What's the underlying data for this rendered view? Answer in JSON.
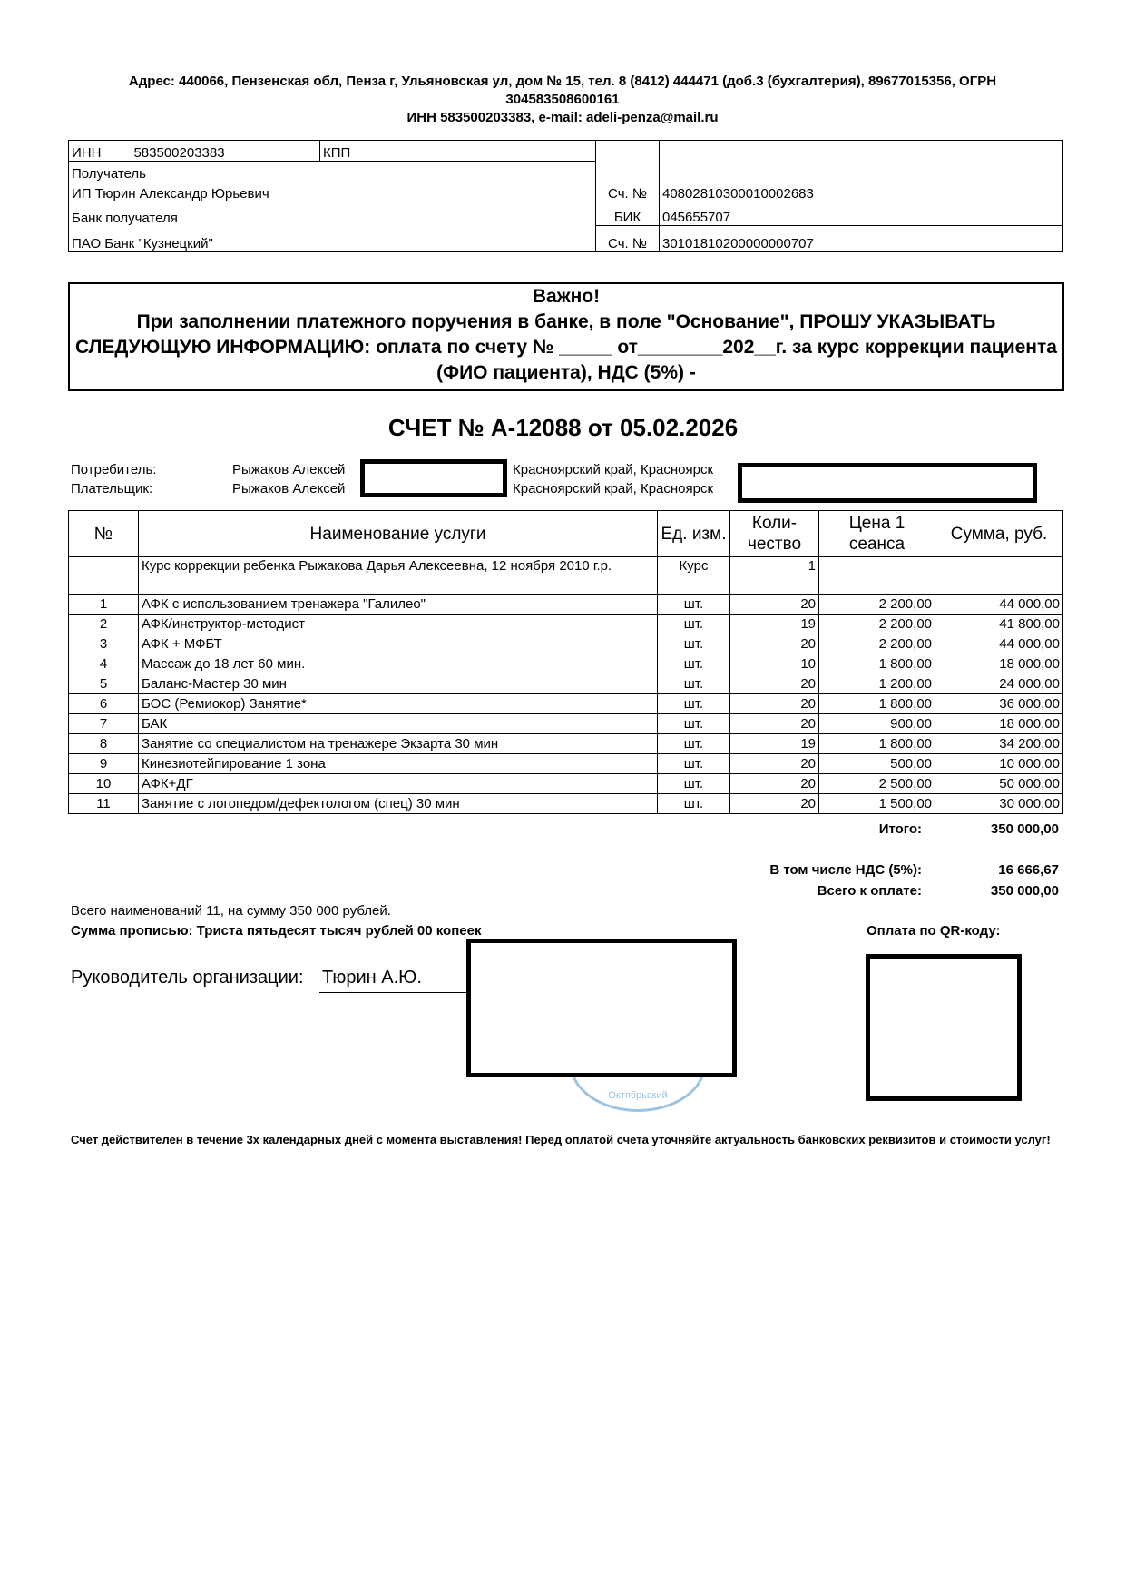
{
  "header": {
    "line1": "Адрес: 440066, Пензенская обл, Пенза г, Ульяновская ул, дом № 15, тел. 8 (8412) 444471 (доб.3 (бухгалтерия),  89677015356, ОГРН",
    "line2": "304583508600161",
    "line3": "ИНН 583500203383, e-mail: adeli-penza@mail.ru"
  },
  "bank": {
    "inn_label": "ИНН",
    "inn": "583500203383",
    "kpp_label": "КПП",
    "recipient_label": "Получатель",
    "recipient": "ИП Тюрин Александр Юрьевич",
    "account_label": "Сч. №",
    "account": "40802810300010002683",
    "bank_label": "Банк получателя",
    "bik_label": "БИК",
    "bik": "045655707",
    "bank_name": "ПАО Банк \"Кузнецкий\"",
    "corr_label": "Сч. №",
    "corr_account": "30101810200000000707"
  },
  "important": {
    "title": "Важно!",
    "text": "При заполнении платежного поручения в банке, в поле \"Основание\", ПРОШУ УКАЗЫВАТЬ СЛЕДУЮЩУЮ ИНФОРМАЦИЮ: оплата по счету № _____ от________202__г. за курс коррекции пациента (ФИО пациента), НДС (5%) -"
  },
  "invoice_title": "СЧЕТ № А-12088 от 05.02.2026",
  "parties": {
    "consumer_label": "Потребитель:",
    "consumer": "Рыжаков Алексей",
    "consumer_region": "Красноярский край, Красноярск",
    "payer_label": "Плательщик:",
    "payer": "Рыжаков Алексей",
    "payer_region": "Красноярский край, Красноярск"
  },
  "table": {
    "headers": [
      "№",
      "Наименование услуги",
      "Ед. изм.",
      "Коли-чество",
      "Цена 1 сеанса",
      "Сумма, руб."
    ],
    "course": {
      "name": "Курс коррекции ребенка Рыжакова Дарья Алексеевна, 12 ноября 2010 г.р.",
      "unit": "Курс",
      "qty": "1"
    },
    "rows": [
      [
        "1",
        "АФК с использованием тренажера \"Галилео\"",
        "шт.",
        "20",
        "2 200,00",
        "44 000,00"
      ],
      [
        "2",
        "АФК/инструктор-методист",
        "шт.",
        "19",
        "2 200,00",
        "41 800,00"
      ],
      [
        "3",
        "АФК + МФБТ",
        "шт.",
        "20",
        "2 200,00",
        "44 000,00"
      ],
      [
        "4",
        "Массаж до 18 лет 60 мин.",
        "шт.",
        "10",
        "1 800,00",
        "18 000,00"
      ],
      [
        "5",
        "Баланс-Мастер 30 мин",
        "шт.",
        "20",
        "1 200,00",
        "24 000,00"
      ],
      [
        "6",
        "БОС (Ремиокор) Занятие*",
        "шт.",
        "20",
        "1 800,00",
        "36 000,00"
      ],
      [
        "7",
        "БАК",
        "шт.",
        "20",
        "900,00",
        "18 000,00"
      ],
      [
        "8",
        "Занятие со специалистом на тренажере Экзарта 30 мин",
        "шт.",
        "19",
        "1 800,00",
        "34 200,00"
      ],
      [
        "9",
        "Кинезиотейпирование 1 зона",
        "шт.",
        "20",
        "500,00",
        "10 000,00"
      ],
      [
        "10",
        "АФК+ДГ",
        "шт.",
        "20",
        "2 500,00",
        "50 000,00"
      ],
      [
        "11",
        "Занятие с логопедом/дефектологом (спец) 30 мин",
        "шт.",
        "20",
        "1 500,00",
        "30 000,00"
      ]
    ]
  },
  "totals": {
    "total_label": "Итого:",
    "total": "350 000,00",
    "vat_label": "В том числе НДС (5%):",
    "vat": "16 666,67",
    "due_label": "Всего к оплате:",
    "due": "350 000,00"
  },
  "summary": "Всего наименований 11, на сумму 350 000 рублей.",
  "in_words": "Сумма прописью: Триста пятьдесят тысяч рублей 00 копеек",
  "qr_label": "Оплата по QR-коду:",
  "signature": {
    "label": "Руководитель организации:",
    "name": "Тюрин А.Ю."
  },
  "stamp_text": "Октябрьский",
  "footer": "Счет действителен в течение 3х календарных дней с момента выставления! Перед оплатой счета уточняйте актуальность банковских реквизитов и стоимости услуг!"
}
